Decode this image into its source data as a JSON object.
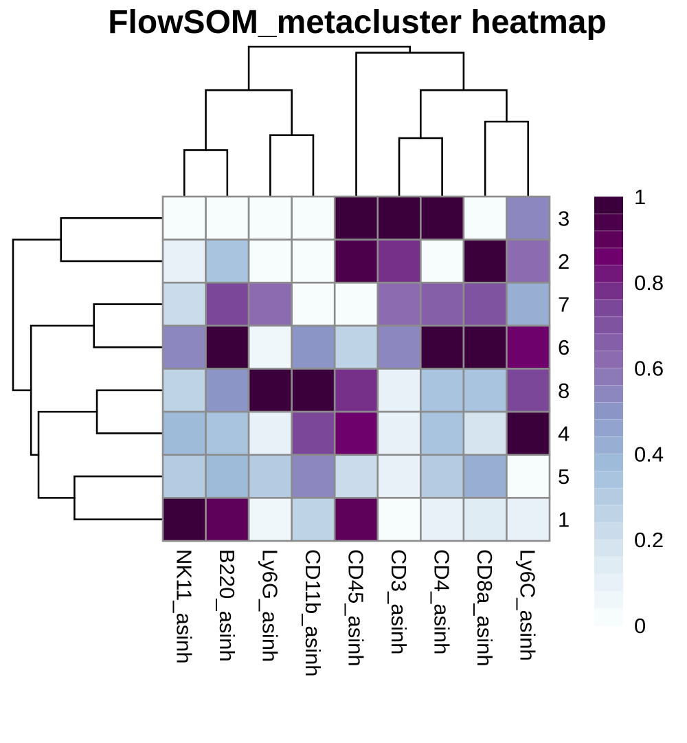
{
  "chart_data": {
    "type": "heatmap",
    "title": "FlowSOM_metacluster heatmap",
    "xlabel": "",
    "ylabel": "",
    "columns": [
      "NK11_asinh",
      "B220_asinh",
      "Ly6G_asinh",
      "CD11b_asinh",
      "CD45_asinh",
      "CD3_asinh",
      "CD4_asinh",
      "CD8a_asinh",
      "Ly6C_asinh"
    ],
    "rows": [
      "3",
      "2",
      "7",
      "6",
      "8",
      "4",
      "5",
      "1"
    ],
    "values": [
      [
        0.0,
        0.0,
        0.01,
        0.01,
        1.0,
        1.0,
        0.99,
        0.02,
        0.55
      ],
      [
        0.08,
        0.35,
        0.01,
        0.0,
        0.92,
        0.78,
        0.0,
        1.0,
        0.6
      ],
      [
        0.22,
        0.72,
        0.6,
        0.0,
        0.0,
        0.62,
        0.65,
        0.7,
        0.4
      ],
      [
        0.55,
        1.0,
        0.04,
        0.48,
        0.25,
        0.55,
        1.0,
        1.0,
        0.85
      ],
      [
        0.25,
        0.5,
        1.0,
        1.0,
        0.78,
        0.08,
        0.32,
        0.35,
        0.72
      ],
      [
        0.38,
        0.35,
        0.1,
        0.74,
        0.85,
        0.1,
        0.32,
        0.18,
        1.0
      ],
      [
        0.3,
        0.38,
        0.3,
        0.55,
        0.22,
        0.08,
        0.3,
        0.42,
        0.0
      ],
      [
        1.0,
        0.88,
        0.04,
        0.25,
        0.88,
        0.01,
        0.08,
        0.12,
        0.09
      ]
    ],
    "zlim": [
      0,
      1
    ],
    "legend": {
      "position": "right",
      "ticks": [
        "0",
        "0.2",
        "0.4",
        "0.6",
        "0.8",
        "1"
      ],
      "tick_values": [
        0,
        0.2,
        0.4,
        0.6,
        0.8,
        1
      ],
      "steps": 25
    },
    "palette": [
      "#F7FCFD",
      "#E0ECF4",
      "#BFD3E6",
      "#9EBCDA",
      "#8C96C6",
      "#8C6BB1",
      "#7A4799",
      "#6E016B",
      "#3B003B"
    ],
    "grid_color": "#8C8C8C",
    "column_dendrogram": {
      "merges": [
        {
          "left": "NK11_asinh",
          "right": "B220_asinh",
          "height": 0.31
        },
        {
          "left": "Ly6G_asinh",
          "right": "CD11b_asinh",
          "height": 0.41
        },
        {
          "left": "CD3_asinh",
          "right": "CD4_asinh",
          "height": 0.39
        },
        {
          "left": "CD8a_asinh",
          "right": "Ly6C_asinh",
          "height": 0.5
        },
        {
          "left": "m1",
          "right": "m2",
          "height": 0.71
        },
        {
          "left": "m3",
          "right": "m4",
          "height": 0.71
        },
        {
          "left": "CD45_asinh",
          "right": "m6",
          "height": 0.96
        },
        {
          "left": "m5",
          "right": "m7",
          "height": 1.0
        }
      ]
    },
    "row_dendrogram": {
      "merges": [
        {
          "left": "3",
          "right": "2",
          "height": 0.68
        },
        {
          "left": "7",
          "right": "6",
          "height": 0.46
        },
        {
          "left": "8",
          "right": "4",
          "height": 0.44
        },
        {
          "left": "5",
          "right": "1",
          "height": 0.59
        },
        {
          "left": "m3",
          "right": "m4",
          "height": 0.83
        },
        {
          "left": "m2",
          "right": "m5",
          "height": 0.88
        },
        {
          "left": "m1",
          "right": "m6",
          "height": 1.0
        }
      ]
    }
  }
}
